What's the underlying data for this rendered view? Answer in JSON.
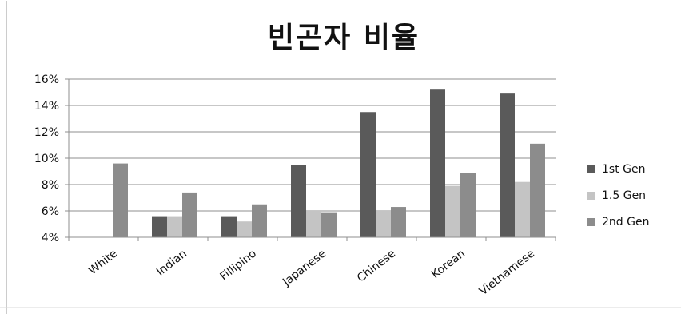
{
  "chart_data": {
    "type": "bar",
    "title": "빈곤자 비율",
    "xlabel": "",
    "ylabel": "",
    "ylim": [
      4,
      16
    ],
    "yticks": [
      "4%",
      "6%",
      "8%",
      "10%",
      "12%",
      "14%",
      "16%"
    ],
    "ytick_values": [
      4,
      6,
      8,
      10,
      12,
      14,
      16
    ],
    "grid": true,
    "legend_position": "right",
    "categories": [
      "White",
      "Indian",
      "Fillipino",
      "Japanese",
      "Chinese",
      "Korean",
      "Vietnamese"
    ],
    "series": [
      {
        "name": "1st Gen",
        "color": "#5a5a5a",
        "values": [
          null,
          5.6,
          5.6,
          9.5,
          13.5,
          15.2,
          14.9
        ]
      },
      {
        "name": "1.5 Gen",
        "color": "#c4c4c4",
        "values": [
          null,
          5.6,
          5.2,
          6.0,
          6.0,
          7.9,
          8.2
        ]
      },
      {
        "name": "2nd Gen",
        "color": "#8c8c8c",
        "values": [
          9.6,
          7.4,
          6.5,
          5.9,
          6.3,
          8.9,
          11.1
        ]
      }
    ]
  }
}
